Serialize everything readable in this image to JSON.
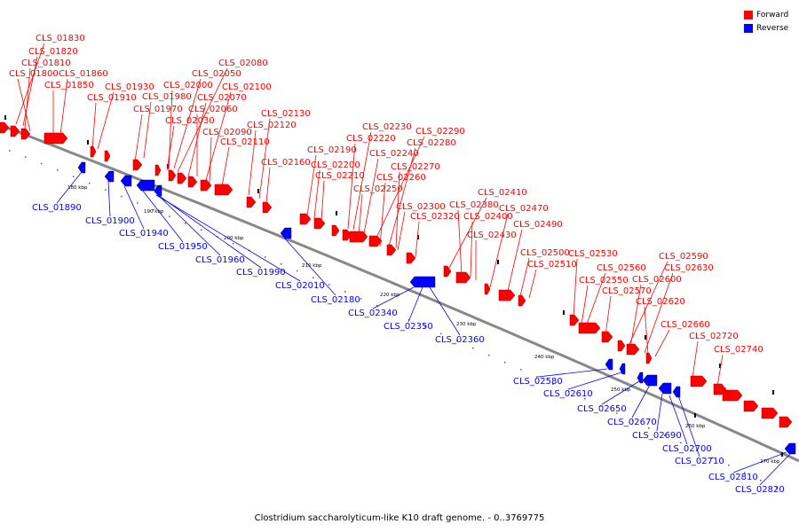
{
  "caption": "Clostridium saccharolyticum-like K10 draft genome. - 0..3769775",
  "legend": {
    "forward": {
      "label": "Forward",
      "color": "#ff0000"
    },
    "reverse": {
      "label": "Reverse",
      "color": "#0000ff"
    }
  },
  "colors": {
    "forward": "#ff0000",
    "reverse": "#0000ff",
    "backbone": "#888888",
    "tick": "#000000"
  },
  "ticks": [
    "180 kbp",
    "190 kbp",
    "200 kbp",
    "210 kbp",
    "220 kbp",
    "230 kbp",
    "240 kbp",
    "250 kbp",
    "260 kbp",
    "270 kbp"
  ],
  "forward_labels": [
    "CLS_01830",
    "CLS_01820",
    "CLS_01810",
    "CLS_01800",
    "CLS_01860",
    "CLS_01850",
    "CLS_01930",
    "CLS_01910",
    "CLS_01980",
    "CLS_01970",
    "CLS_02080",
    "CLS_02050",
    "CLS_02000",
    "CLS_02070",
    "CLS_02100",
    "CLS_02060",
    "CLS_02030",
    "CLS_02090",
    "CLS_02110",
    "CLS_02130",
    "CLS_02120",
    "CLS_02160",
    "CLS_02190",
    "CLS_02200",
    "CLS_02210",
    "CLS_02230",
    "CLS_02220",
    "CLS_02240",
    "CLS_02290",
    "CLS_02280",
    "CLS_02270",
    "CLS_02260",
    "CLS_02250",
    "CLS_02300",
    "CLS_02320",
    "CLS_02410",
    "CLS_02380",
    "CLS_02400",
    "CLS_02470",
    "CLS_02430",
    "CLS_02490",
    "CLS_02500",
    "CLS_02510",
    "CLS_02530",
    "CLS_02590",
    "CLS_02560",
    "CLS_02630",
    "CLS_02550",
    "CLS_02600",
    "CLS_02570",
    "CLS_02620",
    "CLS_02660",
    "CLS_02720",
    "CLS_02740"
  ],
  "reverse_labels": [
    "CLS_01890",
    "CLS_01900",
    "CLS_01940",
    "CLS_01950",
    "CLS_01960",
    "CLS_01990",
    "CLS_02010",
    "CLS_02180",
    "CLS_02340",
    "CLS_02350",
    "CLS_02360",
    "CLS_02580",
    "CLS_02610",
    "CLS_02650",
    "CLS_02670",
    "CLS_02690",
    "CLS_02700",
    "CLS_02710",
    "CLS_02810",
    "CLS_02820"
  ]
}
